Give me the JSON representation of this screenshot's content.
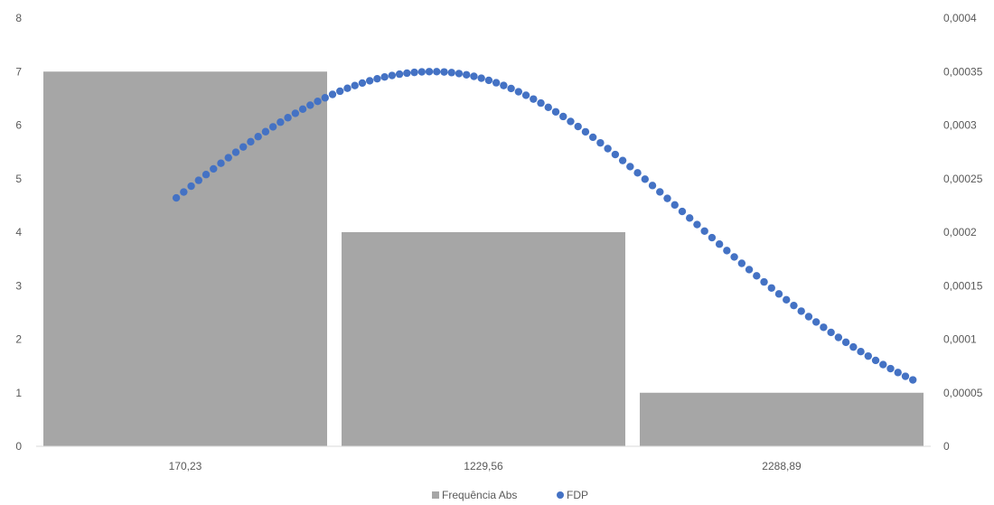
{
  "chart_data": {
    "type": "bar",
    "categories": [
      "170,23",
      "1229,56",
      "2288,89"
    ],
    "series": [
      {
        "name": "Frequência Abs",
        "type": "bar",
        "axis": "left",
        "color": "#a6a6a6",
        "values": [
          7,
          4,
          1
        ]
      },
      {
        "name": "FDP",
        "type": "scatter",
        "axis": "right",
        "color": "#4472c4",
        "x_range": [
          0.47,
          2.94
        ],
        "points": 100,
        "peak_x": 1.33,
        "peak_y": 0.00035,
        "y_start": 0.000232,
        "y_end": 6.2e-05
      }
    ],
    "y_left": {
      "min": 0,
      "max": 8,
      "ticks": [
        "0",
        "1",
        "2",
        "3",
        "4",
        "5",
        "6",
        "7",
        "8"
      ]
    },
    "y_right": {
      "min": 0,
      "max": 0.0004,
      "ticks": [
        "0",
        "0,00005",
        "0,0001",
        "0,00015",
        "0,0002",
        "0,00025",
        "0,0003",
        "0,00035",
        "0,0004"
      ]
    },
    "grid": false,
    "legend_position": "bottom"
  }
}
